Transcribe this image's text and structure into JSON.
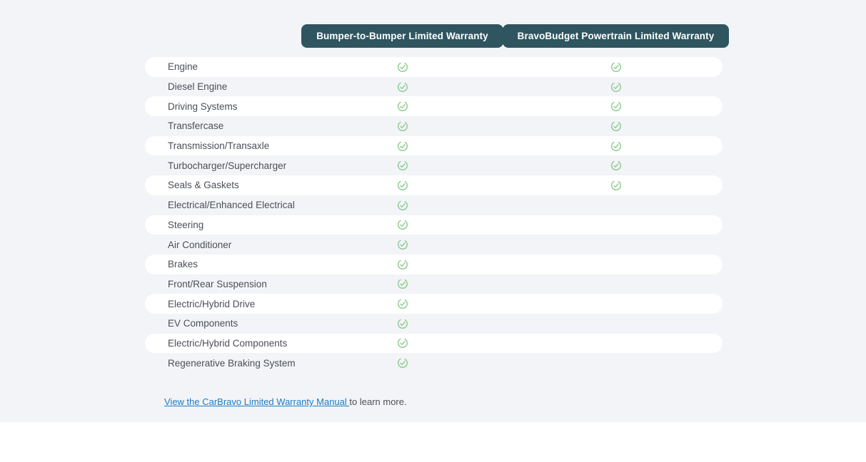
{
  "header": {
    "columns": [
      {
        "label": "Bumper-to-Bumper Limited Warranty"
      },
      {
        "label": "BravoBudget Powertrain Limited Warranty"
      }
    ]
  },
  "table": {
    "check_icon": "check-circle",
    "rows": [
      {
        "label": "Engine",
        "checks": [
          true,
          true
        ]
      },
      {
        "label": "Diesel Engine",
        "checks": [
          true,
          true
        ]
      },
      {
        "label": "Driving Systems",
        "checks": [
          true,
          true
        ]
      },
      {
        "label": "Transfercase",
        "checks": [
          true,
          true
        ]
      },
      {
        "label": "Transmission/Transaxle",
        "checks": [
          true,
          true
        ]
      },
      {
        "label": "Turbocharger/Supercharger",
        "checks": [
          true,
          true
        ]
      },
      {
        "label": "Seals & Gaskets",
        "checks": [
          true,
          true
        ]
      },
      {
        "label": "Electrical/Enhanced Electrical",
        "checks": [
          true,
          false
        ]
      },
      {
        "label": "Steering",
        "checks": [
          true,
          false
        ]
      },
      {
        "label": "Air Conditioner",
        "checks": [
          true,
          false
        ]
      },
      {
        "label": "Brakes",
        "checks": [
          true,
          false
        ]
      },
      {
        "label": "Front/Rear Suspension",
        "checks": [
          true,
          false
        ]
      },
      {
        "label": "Electric/Hybrid Drive",
        "checks": [
          true,
          false
        ]
      },
      {
        "label": "EV Components",
        "checks": [
          true,
          false
        ]
      },
      {
        "label": "Electric/Hybrid Components",
        "checks": [
          true,
          false
        ]
      },
      {
        "label": "Regenerative Braking System",
        "checks": [
          true,
          false
        ]
      }
    ]
  },
  "footer": {
    "link_text": "View the CarBravo Limited Warranty Manual ",
    "suffix_text": "to learn more."
  },
  "colors": {
    "page_bg": "#f3f4f7",
    "pill_bg": "#2f5560",
    "pill_text": "#ffffff",
    "row_stripe": "#ffffff",
    "label_text": "#4b4f58",
    "check_green": "#85c88a",
    "link_blue": "#1d7cc4"
  }
}
